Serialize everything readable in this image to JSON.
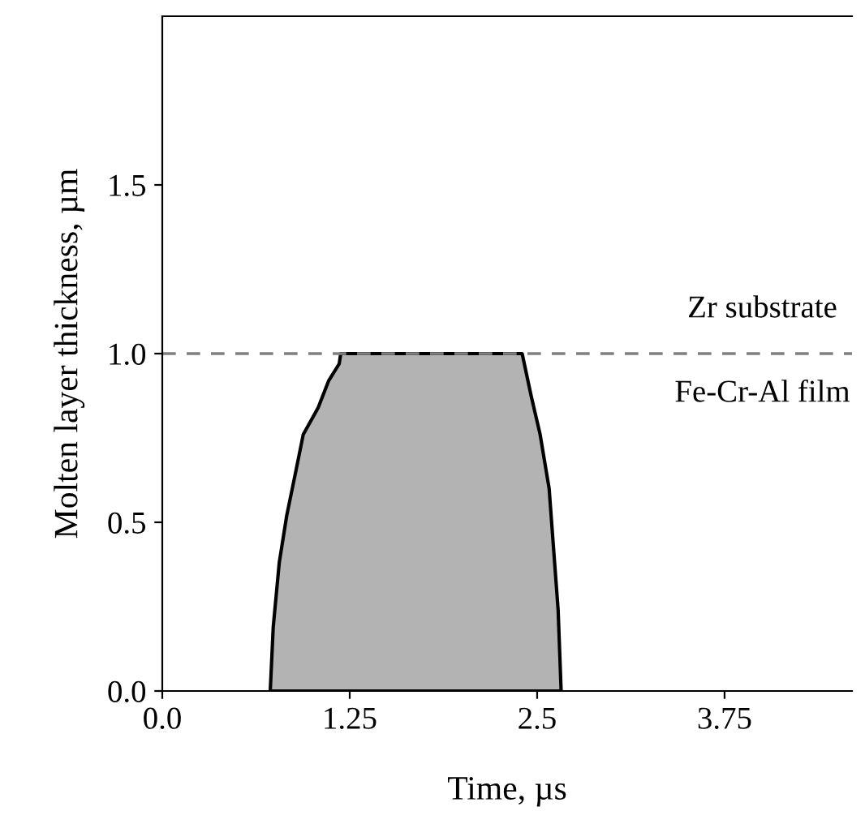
{
  "chart_data": {
    "type": "area",
    "xlabel": "Time, µs",
    "ylabel": "Molten layer thickness, µm",
    "x": [
      0.72,
      0.74,
      0.78,
      0.83,
      0.89,
      0.94,
      1.04,
      1.11,
      1.18,
      1.19,
      2.4,
      2.46,
      2.52,
      2.58,
      2.61,
      2.64,
      2.66
    ],
    "series": [
      {
        "color": "#b3b3b3",
        "values": [
          0,
          0.19,
          0.38,
          0.52,
          0.65,
          0.76,
          0.84,
          0.92,
          0.97,
          1.0,
          1.0,
          0.875,
          0.76,
          0.6,
          0.42,
          0.24,
          0
        ]
      }
    ],
    "xlim": [
      0,
      4.6
    ],
    "ylim": [
      0,
      2.0
    ],
    "xticks": [
      {
        "value": 0,
        "label": "0.0"
      },
      1.25,
      2.5,
      3.75
    ],
    "yticks": [
      {
        "value": 0,
        "label": "0.0"
      },
      0.5,
      {
        "value": 1.0,
        "label": "1.0"
      },
      1.5
    ],
    "ref_lines": [
      {
        "axis": "y",
        "value": 1.0,
        "color": "#808080",
        "line_style": "dashed"
      }
    ],
    "annotations": [
      "Zr substrate",
      "Fe-Cr-Al film"
    ],
    "grid": false,
    "legend": false
  }
}
